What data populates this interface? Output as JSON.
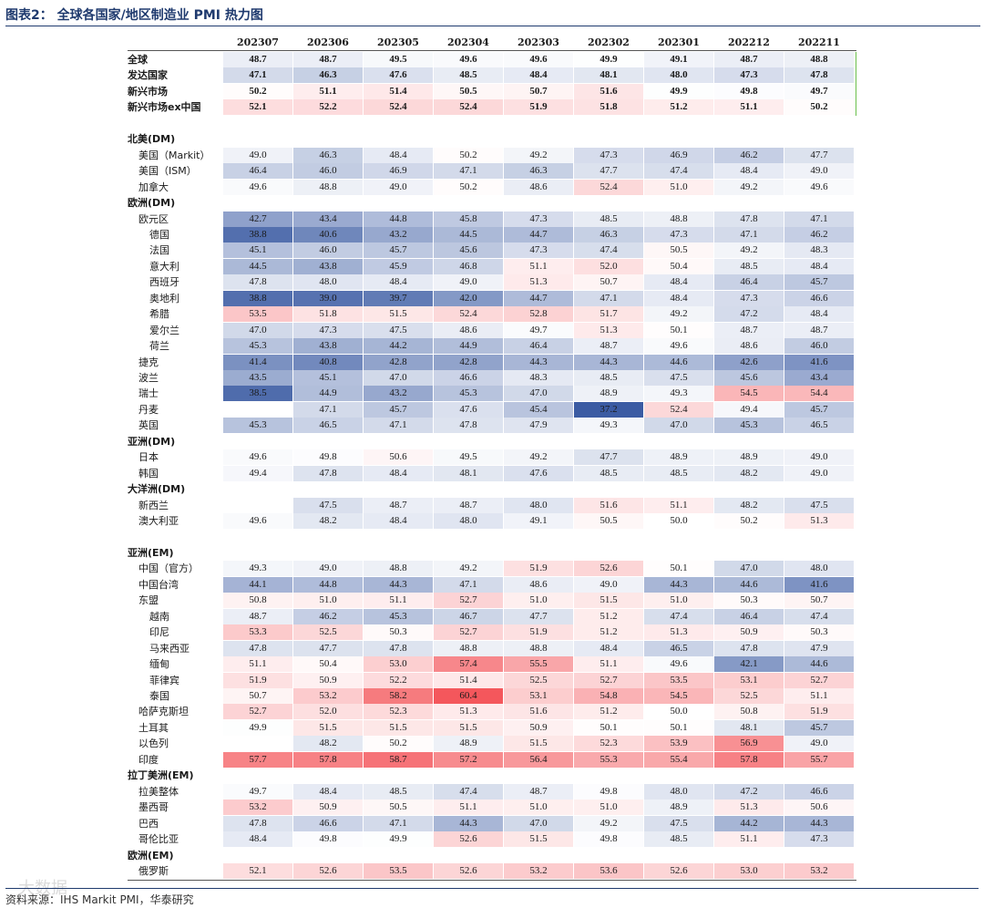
{
  "figure_title": "图表2： 全球各国家/地区制造业 PMI 热力图",
  "source": "资料来源：IHS Markit PMI，华泰研究",
  "watermark": "大数据",
  "colors": {
    "low": "#3b5ba3",
    "mid": "#ffffff",
    "high": "#f4575c",
    "text": "#1a1a1a"
  },
  "chart_data": {
    "type": "heatmap",
    "columns": [
      "202307",
      "202306",
      "202305",
      "202304",
      "202303",
      "202302",
      "202301",
      "202212",
      "202211"
    ],
    "color_scale": {
      "min": 37.2,
      "mid": 50,
      "max": 60.4
    },
    "rows": [
      {
        "label": "全球",
        "indent": 0,
        "bold": true,
        "values": [
          48.7,
          48.7,
          49.5,
          49.6,
          49.6,
          49.9,
          49.1,
          48.7,
          48.8
        ]
      },
      {
        "label": "发达国家",
        "indent": 0,
        "bold": true,
        "values": [
          47.1,
          46.3,
          47.6,
          48.5,
          48.4,
          48.1,
          48.0,
          47.3,
          47.8
        ]
      },
      {
        "label": "新兴市场",
        "indent": 0,
        "bold": true,
        "values": [
          50.2,
          51.1,
          51.4,
          50.5,
          50.7,
          51.6,
          49.9,
          49.8,
          49.7
        ]
      },
      {
        "label": "新兴市场ex中国",
        "indent": 0,
        "bold": true,
        "values": [
          52.1,
          52.2,
          52.4,
          52.4,
          51.9,
          51.8,
          51.2,
          51.1,
          50.2
        ]
      },
      {
        "label": "",
        "indent": 0,
        "bold": false,
        "values": []
      },
      {
        "label": "北美(DM)",
        "indent": 0,
        "bold": true,
        "values": []
      },
      {
        "label": "美国（Markit）",
        "indent": 1,
        "bold": false,
        "values": [
          49.0,
          46.3,
          48.4,
          50.2,
          49.2,
          47.3,
          46.9,
          46.2,
          47.7
        ]
      },
      {
        "label": "美国（ISM）",
        "indent": 1,
        "bold": false,
        "values": [
          46.4,
          46.0,
          46.9,
          47.1,
          46.3,
          47.7,
          47.4,
          48.4,
          49.0
        ]
      },
      {
        "label": "加拿大",
        "indent": 1,
        "bold": false,
        "values": [
          49.6,
          48.8,
          49.0,
          50.2,
          48.6,
          52.4,
          51.0,
          49.2,
          49.6
        ]
      },
      {
        "label": "欧洲(DM)",
        "indent": 0,
        "bold": true,
        "values": []
      },
      {
        "label": "欧元区",
        "indent": 1,
        "bold": false,
        "values": [
          42.7,
          43.4,
          44.8,
          45.8,
          47.3,
          48.5,
          48.8,
          47.8,
          47.1
        ]
      },
      {
        "label": "德国",
        "indent": 2,
        "bold": false,
        "values": [
          38.8,
          40.6,
          43.2,
          44.5,
          44.7,
          46.3,
          47.3,
          47.1,
          46.2
        ]
      },
      {
        "label": "法国",
        "indent": 2,
        "bold": false,
        "values": [
          45.1,
          46.0,
          45.7,
          45.6,
          47.3,
          47.4,
          50.5,
          49.2,
          48.3
        ]
      },
      {
        "label": "意大利",
        "indent": 2,
        "bold": false,
        "values": [
          44.5,
          43.8,
          45.9,
          46.8,
          51.1,
          52.0,
          50.4,
          48.5,
          48.4
        ]
      },
      {
        "label": "西班牙",
        "indent": 2,
        "bold": false,
        "values": [
          47.8,
          48.0,
          48.4,
          49.0,
          51.3,
          50.7,
          48.4,
          46.4,
          45.7
        ]
      },
      {
        "label": "奥地利",
        "indent": 2,
        "bold": false,
        "values": [
          38.8,
          39.0,
          39.7,
          42.0,
          44.7,
          47.1,
          48.4,
          47.3,
          46.6
        ]
      },
      {
        "label": "希腊",
        "indent": 2,
        "bold": false,
        "values": [
          53.5,
          51.8,
          51.5,
          52.4,
          52.8,
          51.7,
          49.2,
          47.2,
          48.4
        ]
      },
      {
        "label": "爱尔兰",
        "indent": 2,
        "bold": false,
        "values": [
          47.0,
          47.3,
          47.5,
          48.6,
          49.7,
          51.3,
          50.1,
          48.7,
          48.7
        ]
      },
      {
        "label": "荷兰",
        "indent": 2,
        "bold": false,
        "values": [
          45.3,
          43.8,
          44.2,
          44.9,
          46.4,
          48.7,
          49.6,
          48.6,
          46.0
        ]
      },
      {
        "label": "捷克",
        "indent": 1,
        "bold": false,
        "values": [
          41.4,
          40.8,
          42.8,
          42.8,
          44.3,
          44.3,
          44.6,
          42.6,
          41.6
        ]
      },
      {
        "label": "波兰",
        "indent": 1,
        "bold": false,
        "values": [
          43.5,
          45.1,
          47.0,
          46.6,
          48.3,
          48.5,
          47.5,
          45.6,
          43.4
        ]
      },
      {
        "label": "瑞士",
        "indent": 1,
        "bold": false,
        "values": [
          38.5,
          44.9,
          43.2,
          45.3,
          47.0,
          48.9,
          49.3,
          54.5,
          54.4
        ]
      },
      {
        "label": "丹麦",
        "indent": 1,
        "bold": false,
        "values": [
          null,
          47.1,
          45.7,
          47.6,
          45.4,
          37.2,
          52.4,
          49.4,
          45.7
        ]
      },
      {
        "label": "英国",
        "indent": 1,
        "bold": false,
        "values": [
          45.3,
          46.5,
          47.1,
          47.8,
          47.9,
          49.3,
          47.0,
          45.3,
          46.5
        ]
      },
      {
        "label": "亚洲(DM)",
        "indent": 0,
        "bold": true,
        "values": []
      },
      {
        "label": "日本",
        "indent": 1,
        "bold": false,
        "values": [
          49.6,
          49.8,
          50.6,
          49.5,
          49.2,
          47.7,
          48.9,
          48.9,
          49.0
        ]
      },
      {
        "label": "韩国",
        "indent": 1,
        "bold": false,
        "values": [
          49.4,
          47.8,
          48.4,
          48.1,
          47.6,
          48.5,
          48.5,
          48.2,
          49.0
        ]
      },
      {
        "label": "大洋洲(DM)",
        "indent": 0,
        "bold": true,
        "values": []
      },
      {
        "label": "新西兰",
        "indent": 1,
        "bold": false,
        "values": [
          null,
          47.5,
          48.7,
          48.7,
          48.0,
          51.6,
          51.1,
          48.2,
          47.5
        ]
      },
      {
        "label": "澳大利亚",
        "indent": 1,
        "bold": false,
        "values": [
          49.6,
          48.2,
          48.4,
          48.0,
          49.1,
          50.5,
          50.0,
          50.2,
          51.3
        ]
      },
      {
        "label": "",
        "indent": 0,
        "bold": false,
        "values": []
      },
      {
        "label": "亚洲(EM)",
        "indent": 0,
        "bold": true,
        "values": []
      },
      {
        "label": "中国（官方）",
        "indent": 1,
        "bold": false,
        "values": [
          49.3,
          49.0,
          48.8,
          49.2,
          51.9,
          52.6,
          50.1,
          47.0,
          48.0
        ]
      },
      {
        "label": "中国台湾",
        "indent": 1,
        "bold": false,
        "values": [
          44.1,
          44.8,
          44.3,
          47.1,
          48.6,
          49.0,
          44.3,
          44.6,
          41.6
        ]
      },
      {
        "label": "东盟",
        "indent": 1,
        "bold": false,
        "values": [
          50.8,
          51.0,
          51.1,
          52.7,
          51.0,
          51.5,
          51.0,
          50.3,
          50.7
        ]
      },
      {
        "label": "越南",
        "indent": 2,
        "bold": false,
        "values": [
          48.7,
          46.2,
          45.3,
          46.7,
          47.7,
          51.2,
          47.4,
          46.4,
          47.4
        ]
      },
      {
        "label": "印尼",
        "indent": 2,
        "bold": false,
        "values": [
          53.3,
          52.5,
          50.3,
          52.7,
          51.9,
          51.2,
          51.3,
          50.9,
          50.3
        ]
      },
      {
        "label": "马来西亚",
        "indent": 2,
        "bold": false,
        "values": [
          47.8,
          47.7,
          47.8,
          48.8,
          48.8,
          48.4,
          46.5,
          47.8,
          47.9
        ]
      },
      {
        "label": "缅甸",
        "indent": 2,
        "bold": false,
        "values": [
          51.1,
          50.4,
          53.0,
          57.4,
          55.5,
          51.1,
          49.6,
          42.1,
          44.6
        ]
      },
      {
        "label": "菲律宾",
        "indent": 2,
        "bold": false,
        "values": [
          51.9,
          50.9,
          52.2,
          51.4,
          52.5,
          52.7,
          53.5,
          53.1,
          52.7
        ]
      },
      {
        "label": "泰国",
        "indent": 2,
        "bold": false,
        "values": [
          50.7,
          53.2,
          58.2,
          60.4,
          53.1,
          54.8,
          54.5,
          52.5,
          51.1
        ]
      },
      {
        "label": "哈萨克斯坦",
        "indent": 1,
        "bold": false,
        "values": [
          52.7,
          52.0,
          52.3,
          51.3,
          51.6,
          51.2,
          50.0,
          50.8,
          51.9
        ]
      },
      {
        "label": "土耳其",
        "indent": 1,
        "bold": false,
        "values": [
          49.9,
          51.5,
          51.5,
          51.5,
          50.9,
          50.1,
          50.1,
          48.1,
          45.7
        ]
      },
      {
        "label": "以色列",
        "indent": 1,
        "bold": false,
        "values": [
          null,
          48.2,
          50.2,
          48.9,
          51.5,
          52.3,
          53.9,
          56.9,
          49.0
        ]
      },
      {
        "label": "印度",
        "indent": 1,
        "bold": false,
        "values": [
          57.7,
          57.8,
          58.7,
          57.2,
          56.4,
          55.3,
          55.4,
          57.8,
          55.7
        ]
      },
      {
        "label": "拉丁美洲(EM)",
        "indent": 0,
        "bold": true,
        "values": []
      },
      {
        "label": "拉美整体",
        "indent": 1,
        "bold": false,
        "values": [
          49.7,
          48.4,
          48.5,
          47.4,
          48.7,
          49.8,
          48.0,
          47.2,
          46.6
        ]
      },
      {
        "label": "墨西哥",
        "indent": 1,
        "bold": false,
        "values": [
          53.2,
          50.9,
          50.5,
          51.1,
          51.0,
          51.0,
          48.9,
          51.3,
          50.6
        ]
      },
      {
        "label": "巴西",
        "indent": 1,
        "bold": false,
        "values": [
          47.8,
          46.6,
          47.1,
          44.3,
          47.0,
          49.2,
          47.5,
          44.2,
          44.3
        ]
      },
      {
        "label": "哥伦比亚",
        "indent": 1,
        "bold": false,
        "values": [
          48.4,
          49.8,
          49.9,
          52.6,
          51.5,
          49.8,
          48.5,
          51.1,
          47.3
        ]
      },
      {
        "label": "欧洲(EM)",
        "indent": 0,
        "bold": true,
        "values": []
      },
      {
        "label": "俄罗斯",
        "indent": 1,
        "bold": false,
        "values": [
          52.1,
          52.6,
          53.5,
          52.6,
          53.2,
          53.6,
          52.6,
          53.0,
          53.2
        ]
      }
    ]
  }
}
